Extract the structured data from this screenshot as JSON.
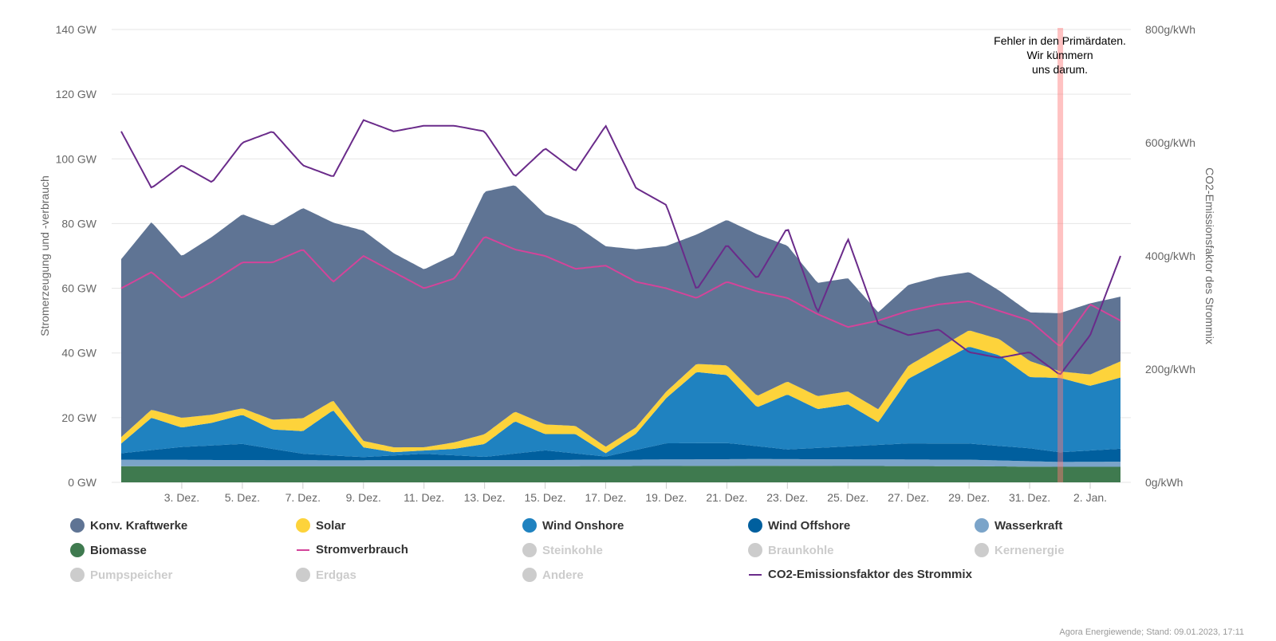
{
  "chart_data": {
    "type": "area",
    "x_unit": "date",
    "x_range": [
      "2022-12-01",
      "2023-01-03"
    ],
    "x_ticks": [
      "3. Dez.",
      "5. Dez.",
      "7. Dez.",
      "9. Dez.",
      "11. Dez.",
      "13. Dez.",
      "15. Dez.",
      "17. Dez.",
      "19. Dez.",
      "21. Dez.",
      "23. Dez.",
      "25. Dez.",
      "27. Dez.",
      "29. Dez.",
      "31. Dez.",
      "2. Jan."
    ],
    "x_tick_dates": [
      "2022-12-03",
      "2022-12-05",
      "2022-12-07",
      "2022-12-09",
      "2022-12-11",
      "2022-12-13",
      "2022-12-15",
      "2022-12-17",
      "2022-12-19",
      "2022-12-21",
      "2022-12-23",
      "2022-12-25",
      "2022-12-27",
      "2022-12-29",
      "2022-12-31",
      "2023-01-02"
    ],
    "y_left": {
      "label": "Stromerzeugung und -verbrauch",
      "min": 0,
      "max": 140,
      "ticks": [
        0,
        20,
        40,
        60,
        80,
        100,
        120,
        140
      ],
      "tick_labels": [
        "0 GW",
        "20 GW",
        "40 GW",
        "60 GW",
        "80 GW",
        "100 GW",
        "120 GW",
        "140 GW"
      ]
    },
    "y_right": {
      "label": "CO2-Emissionsfaktor des Strommix",
      "min": 0,
      "max": 800,
      "ticks": [
        0,
        200,
        400,
        600,
        800
      ],
      "tick_labels": [
        "0g/kWh",
        "200g/kWh",
        "400g/kWh",
        "600g/kWh",
        "800g/kWh"
      ]
    },
    "grid": true,
    "annotation": {
      "date": "2023-01-01",
      "lines": [
        "Fehler in den Primärdaten.",
        "Wir kümmern",
        "uns darum."
      ]
    },
    "series": [
      {
        "name": "Biomasse",
        "type": "stacked-area",
        "color": "#3f7a4f",
        "dates": [
          "2022-12-01",
          "2022-12-08",
          "2022-12-15",
          "2022-12-22",
          "2022-12-29",
          "2023-01-01",
          "2023-01-03"
        ],
        "values": [
          5.0,
          5.0,
          5.0,
          5.1,
          5.0,
          4.8,
          4.8
        ]
      },
      {
        "name": "Wasserkraft",
        "type": "stacked-area",
        "color": "#7ba4c9",
        "dates": [
          "2022-12-01",
          "2022-12-08",
          "2022-12-15",
          "2022-12-22",
          "2022-12-29",
          "2023-01-01",
          "2023-01-03"
        ],
        "values": [
          2.0,
          1.8,
          1.9,
          2.1,
          2.0,
          1.5,
          1.6
        ]
      },
      {
        "name": "Wind Offshore",
        "type": "stacked-area",
        "color": "#005f9e",
        "dates": [
          "2022-12-01",
          "2022-12-03",
          "2022-12-05",
          "2022-12-07",
          "2022-12-09",
          "2022-12-11",
          "2022-12-13",
          "2022-12-15",
          "2022-12-17",
          "2022-12-19",
          "2022-12-21",
          "2022-12-23",
          "2022-12-25",
          "2022-12-27",
          "2022-12-29",
          "2022-12-31",
          "2023-01-01",
          "2023-01-03"
        ],
        "values": [
          2,
          4,
          5,
          2,
          1,
          2,
          1,
          3,
          1,
          5,
          5,
          3,
          4,
          5,
          5,
          4,
          3,
          4
        ]
      },
      {
        "name": "Wind Onshore",
        "type": "stacked-area",
        "color": "#1f82c0",
        "dates": [
          "2022-12-01",
          "2022-12-02",
          "2022-12-03",
          "2022-12-04",
          "2022-12-05",
          "2022-12-06",
          "2022-12-07",
          "2022-12-08",
          "2022-12-09",
          "2022-12-10",
          "2022-12-11",
          "2022-12-12",
          "2022-12-13",
          "2022-12-14",
          "2022-12-15",
          "2022-12-16",
          "2022-12-17",
          "2022-12-18",
          "2022-12-19",
          "2022-12-20",
          "2022-12-21",
          "2022-12-22",
          "2022-12-23",
          "2022-12-24",
          "2022-12-25",
          "2022-12-26",
          "2022-12-27",
          "2022-12-28",
          "2022-12-29",
          "2022-12-30",
          "2022-12-31",
          "2023-01-01",
          "2023-01-02",
          "2023-01-03"
        ],
        "values": [
          3,
          10,
          6,
          7,
          9,
          6,
          7,
          14,
          3,
          1,
          1,
          2,
          4,
          10,
          5,
          6,
          1,
          5,
          14,
          22,
          21,
          12,
          17,
          12,
          13,
          7,
          20,
          25,
          30,
          28,
          22,
          23,
          20,
          22
        ]
      },
      {
        "name": "Solar",
        "type": "stacked-area",
        "color": "#fdd33b",
        "dates": [
          "2022-12-01",
          "2022-12-03",
          "2022-12-05",
          "2022-12-07",
          "2022-12-09",
          "2022-12-11",
          "2022-12-13",
          "2022-12-15",
          "2022-12-17",
          "2022-12-19",
          "2022-12-21",
          "2022-12-23",
          "2022-12-25",
          "2022-12-27",
          "2022-12-29",
          "2022-12-31",
          "2023-01-01",
          "2023-01-03"
        ],
        "values": [
          2,
          3,
          2,
          4,
          2,
          1,
          3,
          3,
          2,
          2,
          3,
          4,
          4,
          4,
          5,
          5,
          2,
          5
        ]
      },
      {
        "name": "Konv. Kraftwerke",
        "type": "stacked-area",
        "color": "#5f7494",
        "dates": [
          "2022-12-01",
          "2022-12-02",
          "2022-12-03",
          "2022-12-04",
          "2022-12-05",
          "2022-12-06",
          "2022-12-07",
          "2022-12-08",
          "2022-12-09",
          "2022-12-10",
          "2022-12-11",
          "2022-12-12",
          "2022-12-13",
          "2022-12-14",
          "2022-12-15",
          "2022-12-16",
          "2022-12-17",
          "2022-12-18",
          "2022-12-19",
          "2022-12-20",
          "2022-12-21",
          "2022-12-22",
          "2022-12-23",
          "2022-12-24",
          "2022-12-25",
          "2022-12-26",
          "2022-12-27",
          "2022-12-28",
          "2022-12-29",
          "2022-12-30",
          "2022-12-31",
          "2023-01-01",
          "2023-01-02",
          "2023-01-03"
        ],
        "values": [
          55,
          58,
          50,
          55,
          60,
          60,
          65,
          55,
          65,
          60,
          55,
          58,
          75,
          70,
          65,
          62,
          62,
          55,
          45,
          40,
          45,
          50,
          42,
          35,
          35,
          30,
          25,
          22,
          18,
          15,
          15,
          18,
          22,
          20
        ]
      },
      {
        "name": "Stromverbrauch",
        "type": "line",
        "color": "#d3449a",
        "dates": [
          "2022-12-01",
          "2022-12-02",
          "2022-12-03",
          "2022-12-04",
          "2022-12-05",
          "2022-12-06",
          "2022-12-07",
          "2022-12-08",
          "2022-12-09",
          "2022-12-10",
          "2022-12-11",
          "2022-12-12",
          "2022-12-13",
          "2022-12-14",
          "2022-12-15",
          "2022-12-16",
          "2022-12-17",
          "2022-12-18",
          "2022-12-19",
          "2022-12-20",
          "2022-12-21",
          "2022-12-22",
          "2022-12-23",
          "2022-12-24",
          "2022-12-25",
          "2022-12-26",
          "2022-12-27",
          "2022-12-28",
          "2022-12-29",
          "2022-12-30",
          "2022-12-31",
          "2023-01-01",
          "2023-01-02",
          "2023-01-03"
        ],
        "values": [
          60,
          65,
          57,
          62,
          68,
          68,
          72,
          62,
          70,
          65,
          60,
          63,
          76,
          72,
          70,
          66,
          67,
          62,
          60,
          57,
          62,
          59,
          57,
          52,
          48,
          50,
          53,
          55,
          56,
          53,
          50,
          42,
          55,
          50
        ]
      },
      {
        "name": "CO2-Emissionsfaktor des Strommix",
        "type": "line",
        "axis": "right",
        "color": "#6a2b8a",
        "dates": [
          "2022-12-01",
          "2022-12-02",
          "2022-12-03",
          "2022-12-04",
          "2022-12-05",
          "2022-12-06",
          "2022-12-07",
          "2022-12-08",
          "2022-12-09",
          "2022-12-10",
          "2022-12-11",
          "2022-12-12",
          "2022-12-13",
          "2022-12-14",
          "2022-12-15",
          "2022-12-16",
          "2022-12-17",
          "2022-12-18",
          "2022-12-19",
          "2022-12-20",
          "2022-12-21",
          "2022-12-22",
          "2022-12-23",
          "2022-12-24",
          "2022-12-25",
          "2022-12-26",
          "2022-12-27",
          "2022-12-28",
          "2022-12-29",
          "2022-12-30",
          "2022-12-31",
          "2023-01-01",
          "2023-01-02",
          "2023-01-03"
        ],
        "values": [
          620,
          520,
          560,
          530,
          600,
          620,
          560,
          540,
          640,
          620,
          630,
          630,
          620,
          540,
          590,
          550,
          630,
          520,
          490,
          340,
          420,
          360,
          450,
          300,
          430,
          280,
          260,
          270,
          230,
          220,
          230,
          190,
          260,
          400
        ]
      }
    ]
  },
  "legend": {
    "items": [
      {
        "label": "Konv. Kraftwerke",
        "color": "#5f7494",
        "symbol": "dot",
        "active": true
      },
      {
        "label": "Solar",
        "color": "#fdd33b",
        "symbol": "dot",
        "active": true
      },
      {
        "label": "Wind Onshore",
        "color": "#1f82c0",
        "symbol": "dot",
        "active": true
      },
      {
        "label": "Wind Offshore",
        "color": "#005f9e",
        "symbol": "dot",
        "active": true
      },
      {
        "label": "Wasserkraft",
        "color": "#7ba4c9",
        "symbol": "dot",
        "active": true
      },
      {
        "label": "Biomasse",
        "color": "#3f7a4f",
        "symbol": "dot",
        "active": true
      },
      {
        "label": "Stromverbrauch",
        "color": "#d3449a",
        "symbol": "line",
        "active": true
      },
      {
        "label": "Steinkohle",
        "color": "#cccccc",
        "symbol": "dot",
        "active": false
      },
      {
        "label": "Braunkohle",
        "color": "#cccccc",
        "symbol": "dot",
        "active": false
      },
      {
        "label": "Kernenergie",
        "color": "#cccccc",
        "symbol": "dot",
        "active": false
      },
      {
        "label": "Pumpspeicher",
        "color": "#cccccc",
        "symbol": "dot",
        "active": false
      },
      {
        "label": "Erdgas",
        "color": "#cccccc",
        "symbol": "dot",
        "active": false
      },
      {
        "label": "Andere",
        "color": "#cccccc",
        "symbol": "dot",
        "active": false
      },
      {
        "label": "CO2-Emissionsfaktor des Strommix",
        "color": "#6a2b8a",
        "symbol": "line",
        "active": true
      }
    ]
  },
  "credit": "Agora Energiewende; Stand: 09.01.2023, 17:11"
}
